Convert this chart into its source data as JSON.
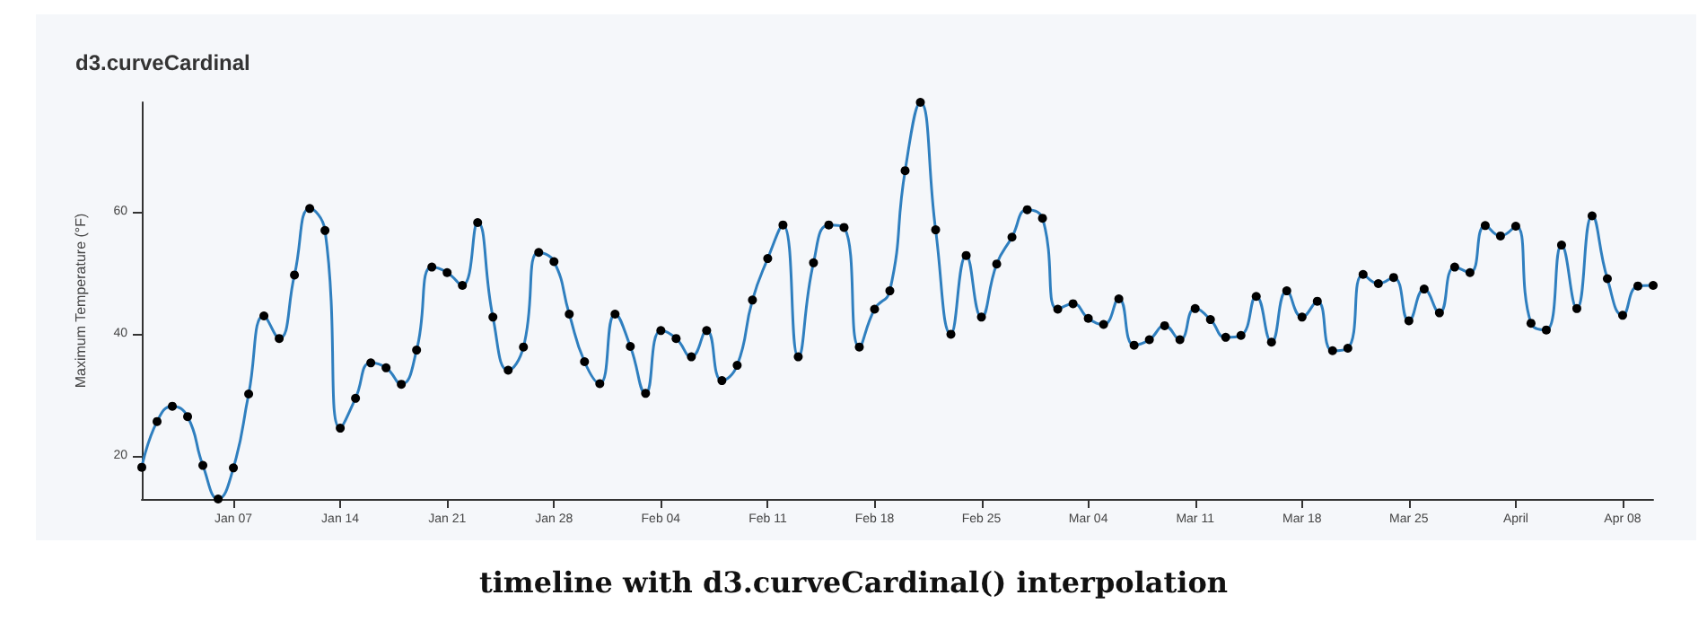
{
  "chart_data": {
    "type": "line",
    "title": "d3.curveCardinal",
    "ylabel": "Maximum Temperature (°F)",
    "annotations": [
      "timeline with d3.curveCardinal() interpolation"
    ],
    "x": [
      "--01-01",
      "--01-02",
      "--01-03",
      "--01-04",
      "--01-05",
      "--01-06",
      "--01-07",
      "--01-08",
      "--01-09",
      "--01-10",
      "--01-11",
      "--01-12",
      "--01-13",
      "--01-14",
      "--01-15",
      "--01-16",
      "--01-17",
      "--01-18",
      "--01-19",
      "--01-20",
      "--01-21",
      "--01-22",
      "--01-23",
      "--01-24",
      "--01-25",
      "--01-26",
      "--01-27",
      "--01-28",
      "--01-29",
      "--01-30",
      "--01-31",
      "--02-01",
      "--02-02",
      "--02-03",
      "--02-04",
      "--02-05",
      "--02-06",
      "--02-07",
      "--02-08",
      "--02-09",
      "--02-10",
      "--02-11",
      "--02-12",
      "--02-13",
      "--02-14",
      "--02-15",
      "--02-16",
      "--02-17",
      "--02-18",
      "--02-19",
      "--02-20",
      "--02-21",
      "--02-22",
      "--02-23",
      "--02-24",
      "--02-25",
      "--02-26",
      "--02-27",
      "--02-28",
      "--03-01",
      "--03-02",
      "--03-03",
      "--03-04",
      "--03-05",
      "--03-06",
      "--03-07",
      "--03-08",
      "--03-09",
      "--03-10",
      "--03-11",
      "--03-12",
      "--03-13",
      "--03-14",
      "--03-15",
      "--03-16",
      "--03-17",
      "--03-18",
      "--03-19",
      "--03-20",
      "--03-21",
      "--03-22",
      "--03-23",
      "--03-24",
      "--03-25",
      "--03-26",
      "--03-27",
      "--03-28",
      "--03-29",
      "--03-30",
      "--03-31",
      "--04-01",
      "--04-02",
      "--04-03",
      "--04-04",
      "--04-05",
      "--04-06",
      "--04-07",
      "--04-08",
      "--04-09",
      "--04-10"
    ],
    "series": [
      {
        "color": "#2f7fbf",
        "values": [
          18.2,
          25.7,
          28.2,
          26.5,
          18.5,
          13,
          18.1,
          30.2,
          43.0,
          39.3,
          49.7,
          60.6,
          57.0,
          24.6,
          29.5,
          35.3,
          34.5,
          31.8,
          37.4,
          51.0,
          50.1,
          48.0,
          58.3,
          42.8,
          34.1,
          37.9,
          53.4,
          51.9,
          43.3,
          35.5,
          31.9,
          43.3,
          38.0,
          30.3,
          40.6,
          39.3,
          36.3,
          40.6,
          32.4,
          34.9,
          45.6,
          52.4,
          57.9,
          36.3,
          51.7,
          57.9,
          57.5,
          37.9,
          44.1,
          47.1,
          66.8,
          78,
          57.1,
          40.0,
          52.9,
          42.8,
          51.5,
          55.9,
          60.4,
          59.0,
          44.1,
          45.0,
          42.6,
          41.6,
          45.8,
          38.2,
          39.1,
          41.4,
          39.1,
          44.2,
          42.4,
          39.5,
          39.8,
          46.2,
          38.7,
          47.1,
          42.8,
          45.4,
          37.3,
          37.7,
          49.8,
          48.3,
          49.3,
          42.2,
          47.4,
          43.5,
          51.0,
          50.1,
          57.8,
          56.1,
          57.7,
          41.8,
          40.7,
          54.6,
          44.2,
          59.4,
          49.1,
          43.1,
          47.9,
          48.0
        ]
      }
    ],
    "xlim": [
      "--01-01",
      "--04-10"
    ],
    "xticks": [
      {
        "value": "--01-07",
        "label": "Jan 07"
      },
      {
        "value": "--01-14",
        "label": "Jan 14"
      },
      {
        "value": "--01-21",
        "label": "Jan 21"
      },
      {
        "value": "--01-28",
        "label": "Jan 28"
      },
      {
        "value": "--02-04",
        "label": "Feb 04"
      },
      {
        "value": "--02-11",
        "label": "Feb 11"
      },
      {
        "value": "--02-18",
        "label": "Feb 18"
      },
      {
        "value": "--02-25",
        "label": "Feb 25"
      },
      {
        "value": "--03-04",
        "label": "Mar 04"
      },
      {
        "value": "--03-11",
        "label": "Mar 11"
      },
      {
        "value": "--03-18",
        "label": "Mar 18"
      },
      {
        "value": "--03-25",
        "label": "Mar 25"
      },
      {
        "value": "--04-01",
        "label": "April"
      },
      {
        "value": "--04-08",
        "label": "Apr 08"
      }
    ],
    "ylim": [
      13,
      78
    ],
    "yticks": [
      20,
      40,
      60
    ],
    "grid": false,
    "marker": "circle",
    "line_style": "solid"
  }
}
